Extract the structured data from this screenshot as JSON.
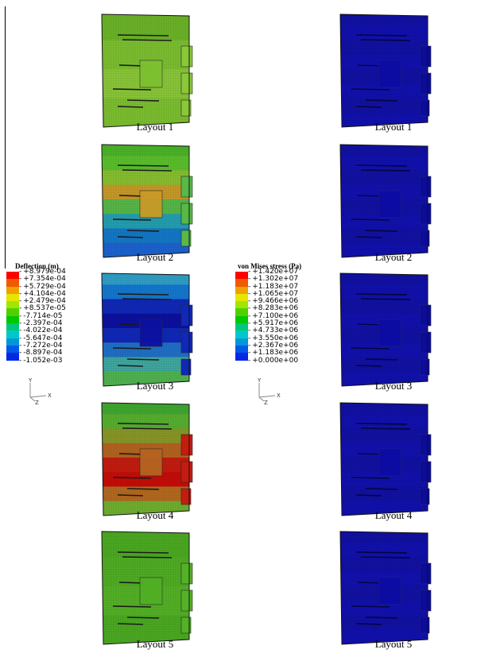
{
  "deflection_legend": {
    "title": "Deflection (m)",
    "labels": [
      "+8.979e-04",
      "+7.354e-04",
      "+5.729e-04",
      "+4.104e-04",
      "+2.479e-04",
      "+8.537e-05",
      "-7.714e-05",
      "-2.397e-04",
      "-4.022e-04",
      "-5.647e-04",
      "-7.272e-04",
      "-8.897e-04",
      "-1.052e-03"
    ],
    "colors": [
      "#ff0000",
      "#f05a00",
      "#f0a000",
      "#e6e600",
      "#a0e600",
      "#50d000",
      "#00c800",
      "#00c878",
      "#00c8c8",
      "#0096dc",
      "#005ae6",
      "#0028e6",
      "#0000c8"
    ]
  },
  "stress_legend": {
    "title": "von Mises stress (Pa)",
    "labels": [
      "+1.420e+07",
      "+1.302e+07",
      "+1.183e+07",
      "+1.065e+07",
      "+9.466e+06",
      "+8.283e+06",
      "+7.100e+06",
      "+5.917e+06",
      "+4.733e+06",
      "+3.550e+06",
      "+2.367e+06",
      "+1.183e+06",
      "+0.000e+00"
    ],
    "colors": [
      "#ff0000",
      "#f05a00",
      "#f0a000",
      "#e6e600",
      "#a0e600",
      "#50d000",
      "#00c800",
      "#00c878",
      "#00c8c8",
      "#0096dc",
      "#005ae6",
      "#0028e6",
      "#0000c8"
    ]
  },
  "axes": {
    "y": "Y",
    "x": "X",
    "z": "Z"
  },
  "left_column": [
    {
      "caption": "Layout 1",
      "bands": [
        "#6cb428",
        "#6cb428",
        "#7cc030",
        "#7cc030",
        "#8ac838",
        "#8ac838",
        "#7cc030",
        "#7cc030"
      ]
    },
    {
      "caption": "Layout 2",
      "bands": [
        "#4cb428",
        "#5cc02c",
        "#88c030",
        "#c89a28",
        "#58b848",
        "#24a0b0",
        "#1478c8",
        "#1c64d0"
      ]
    },
    {
      "caption": "Layout 3",
      "bands": [
        "#30a0c8",
        "#1478d0",
        "#1028b8",
        "#0c10a0",
        "#1028b8",
        "#2070c8",
        "#40a8a0",
        "#50b450"
      ]
    },
    {
      "caption": "Layout 4",
      "bands": [
        "#40a830",
        "#58b030",
        "#889828",
        "#b46420",
        "#c41c10",
        "#c80c08",
        "#b46a20",
        "#70b030"
      ]
    },
    {
      "caption": "Layout 5",
      "bands": [
        "#4caa22",
        "#4caa22",
        "#50ae24",
        "#50ae24",
        "#54b226",
        "#54b226",
        "#4caa22",
        "#4caa22"
      ]
    }
  ],
  "right_column": [
    {
      "caption": "Layout 1",
      "bands": [
        "#0c0c98",
        "#0c0ca4",
        "#0c0c98",
        "#0c0ca4",
        "#0c0c98",
        "#0c0ca4",
        "#0c0c98",
        "#0c0ca4"
      ]
    },
    {
      "caption": "Layout 2",
      "bands": [
        "#0c0c98",
        "#0c0ca4",
        "#0c0c98",
        "#0c0ca4",
        "#0c0c98",
        "#0c0ca4",
        "#0c0c98",
        "#0c0ca4"
      ]
    },
    {
      "caption": "Layout 3",
      "bands": [
        "#0c0c98",
        "#0c0ca4",
        "#0c0c98",
        "#0c0ca4",
        "#0c0c98",
        "#0c0ca4",
        "#0c0c98",
        "#0c0ca4"
      ]
    },
    {
      "caption": "Layout 4",
      "bands": [
        "#0c0c98",
        "#0c0ca4",
        "#0c0c98",
        "#0c0ca4",
        "#0c0c98",
        "#0c0ca4",
        "#0c0c98",
        "#0c0ca4"
      ]
    },
    {
      "caption": "Layout 5",
      "bands": [
        "#0c0c98",
        "#0c0ca4",
        "#0c0c98",
        "#0c0ca4",
        "#0c0c98",
        "#0c0ca4",
        "#0c0c98",
        "#0c0ca4"
      ]
    }
  ]
}
